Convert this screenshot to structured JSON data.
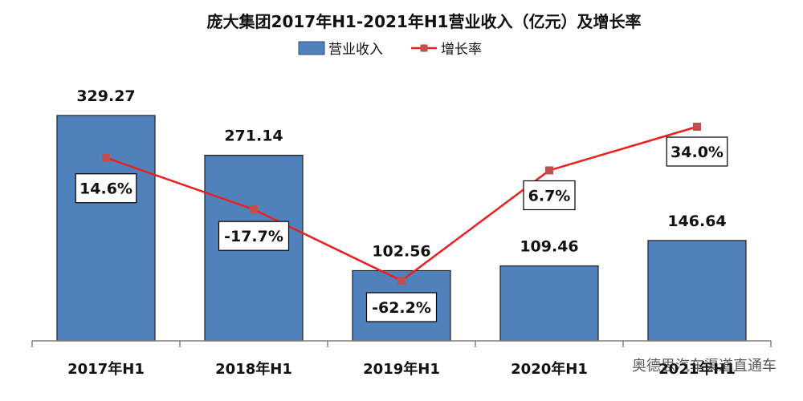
{
  "chart_data": {
    "type": "bar",
    "title": "庞大集团2017年H1-2021年H1营业收入（亿元）及增长率",
    "categories": [
      "2017年H1",
      "2018年H1",
      "2019年H1",
      "2020年H1",
      "2021年H1"
    ],
    "series": [
      {
        "name": "营业收入",
        "kind": "bar",
        "color": "#4f81bd",
        "values": [
          329.27,
          271.14,
          102.56,
          109.46,
          146.64
        ],
        "labels": [
          "329.27",
          "271.14",
          "102.56",
          "109.46",
          "146.64"
        ]
      },
      {
        "name": "增长率",
        "kind": "line",
        "color": "#e8201f",
        "marker_color": "#c0504d",
        "values": [
          14.6,
          -17.7,
          -62.2,
          6.7,
          34.0
        ],
        "labels": [
          "14.6%",
          "-17.7%",
          "-62.2%",
          "6.7%",
          "34.0%"
        ]
      }
    ],
    "y_left_range": [
      0,
      400
    ],
    "y_right_range": [
      -80,
      60
    ],
    "grid": false,
    "legend_position": "top-center"
  },
  "watermark": {
    "text": "奥德思汽车渠道直通车"
  }
}
